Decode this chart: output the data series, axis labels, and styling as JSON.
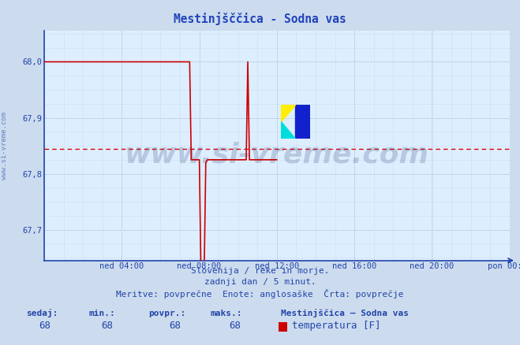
{
  "title": "Mestinjšččica - Sodna vas",
  "bg_color": "#ccdcee",
  "plot_bg_color": "#ddeeff",
  "grid_color_major": "#aabbdd",
  "grid_color_minor": "#bbccdd",
  "line_color": "#cc0000",
  "avg_line_color": "#dd0000",
  "avg_value": 67.845,
  "ylim": [
    67.645,
    68.055
  ],
  "yticks": [
    67.7,
    67.8,
    67.9,
    68.0
  ],
  "ytick_labels": [
    "67,7",
    "67,8",
    "67,9",
    "68,0"
  ],
  "xtick_labels": [
    "ned 04:00",
    "ned 08:00",
    "ned 12:00",
    "ned 16:00",
    "ned 20:00",
    "pon 00:00"
  ],
  "xtick_positions_frac": [
    0.1667,
    0.3333,
    0.5,
    0.6667,
    0.8333,
    1.0
  ],
  "footer_line1": "Slovenija / reke in morje.",
  "footer_line2": "zadnji dan / 5 minut.",
  "footer_line3": "Meritve: povrpečne  Enote: anglosaške  Črta: povrpečje",
  "footer_line3_correct": "Meritve: povprečne  Enote: anglosaške  Črta: povprečje",
  "legend_station": "Mestinjščica – Sodna vas",
  "legend_label": "temperatura [F]",
  "sedaj": 68,
  "min_val": 68,
  "povpr": 68,
  "maks": 68,
  "watermark": "www.si-vreme.com",
  "axis_color": "#2244aa",
  "text_color": "#2244aa",
  "title_color": "#2244bb"
}
